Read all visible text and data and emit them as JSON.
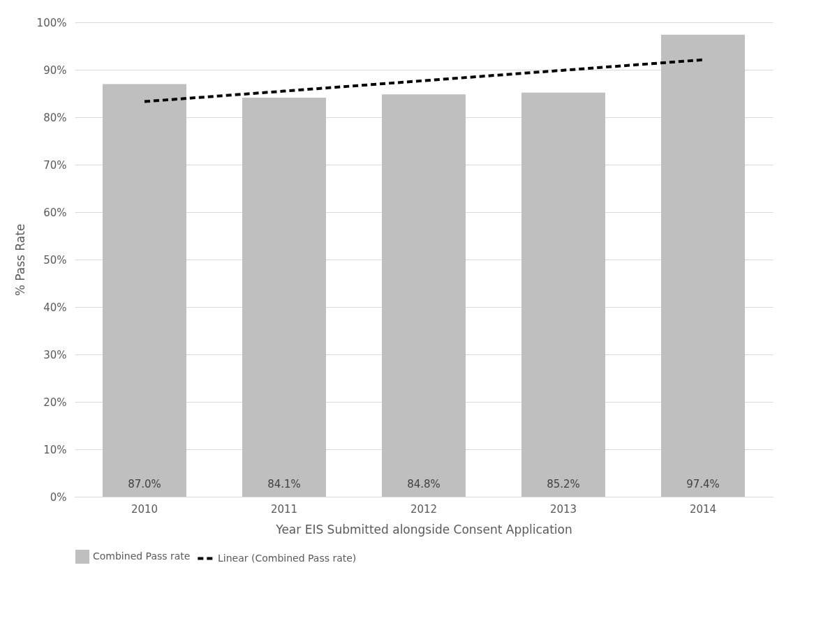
{
  "chart_data": {
    "type": "bar",
    "xlabel": "Year EIS Submitted alongside Consent Application",
    "ylabel": "% Pass Rate",
    "categories": [
      "2010",
      "2011",
      "2012",
      "2013",
      "2014"
    ],
    "series": [
      {
        "name": "Combined Pass rate",
        "color": "#bfbfbf",
        "values": [
          87.0,
          84.1,
          84.8,
          85.2,
          97.4
        ],
        "value_labels": [
          "87.0%",
          "84.1%",
          "84.8%",
          "85.2%",
          "97.4%"
        ]
      },
      {
        "name": "Linear (Combined Pass rate)",
        "type": "line",
        "color": "#000000",
        "line_style": "dashed",
        "values": [
          83.3,
          85.5,
          87.7,
          89.9,
          92.1
        ]
      }
    ],
    "ylim": [
      0,
      100
    ],
    "yticks": [
      {
        "value": 0,
        "label": "0%"
      },
      {
        "value": 10,
        "label": "10%"
      },
      {
        "value": 20,
        "label": "20%"
      },
      {
        "value": 30,
        "label": "30%"
      },
      {
        "value": 40,
        "label": "40%"
      },
      {
        "value": 50,
        "label": "50%"
      },
      {
        "value": 60,
        "label": "60%"
      },
      {
        "value": 70,
        "label": "70%"
      },
      {
        "value": 80,
        "label": "80%"
      },
      {
        "value": 90,
        "label": "90%"
      },
      {
        "value": 100,
        "label": "100%"
      }
    ],
    "grid": "y",
    "legend": "bottom"
  }
}
